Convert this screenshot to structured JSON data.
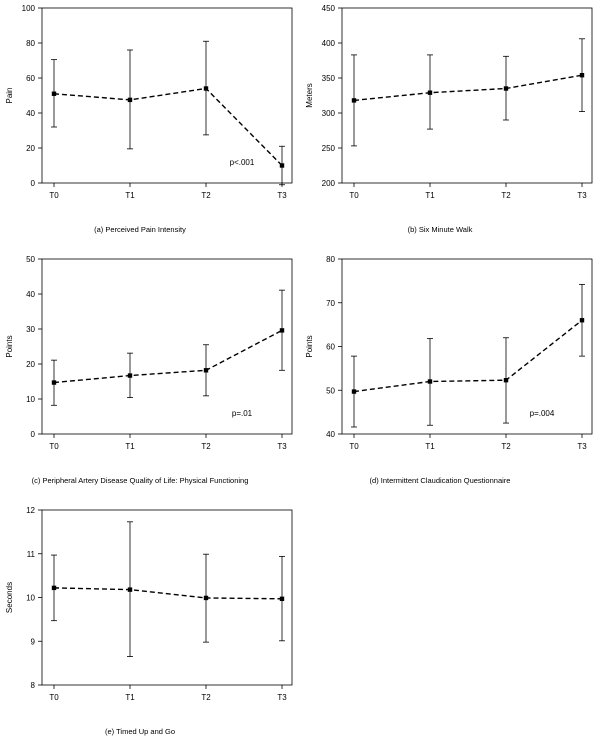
{
  "chart_data": [
    {
      "type": "line",
      "caption": "(a) Perceived Pain Intensity",
      "ylabel": "Pain",
      "categories": [
        "T0",
        "T1",
        "T2",
        "T3"
      ],
      "ylim": [
        0,
        100
      ],
      "yticks": [
        0,
        20,
        40,
        60,
        80,
        100
      ],
      "values": [
        51,
        47.5,
        54,
        10
      ],
      "err_low": [
        32,
        19.5,
        27.5,
        -1
      ],
      "err_high": [
        70.5,
        76,
        81,
        21
      ],
      "annotation": "p<.001",
      "grid": false
    },
    {
      "type": "line",
      "caption": "(b) Six Minute Walk",
      "ylabel": "Meters",
      "categories": [
        "T0",
        "T1",
        "T2",
        "T3"
      ],
      "ylim": [
        200,
        450
      ],
      "yticks": [
        200,
        250,
        300,
        350,
        400,
        450
      ],
      "values": [
        318,
        329,
        335,
        354
      ],
      "err_low": [
        253,
        277,
        290,
        302
      ],
      "err_high": [
        383,
        383,
        381,
        406
      ],
      "annotation": "",
      "grid": false
    },
    {
      "type": "line",
      "caption": "(c) Peripheral Artery Disease Quality of Life: Physical Functioning",
      "ylabel": "Points",
      "categories": [
        "T0",
        "T1",
        "T2",
        "T3"
      ],
      "ylim": [
        0,
        50
      ],
      "yticks": [
        0,
        10,
        20,
        30,
        40,
        50
      ],
      "values": [
        14.7,
        16.7,
        18.2,
        29.6
      ],
      "err_low": [
        8.2,
        10.4,
        10.9,
        18.2
      ],
      "err_high": [
        21.1,
        23.1,
        25.5,
        41.1
      ],
      "annotation": "p=.01",
      "grid": false
    },
    {
      "type": "line",
      "caption": "(d) Intermittent Claudication Questionnaire",
      "ylabel": "Points",
      "categories": [
        "T0",
        "T1",
        "T2",
        "T3"
      ],
      "ylim": [
        40,
        80
      ],
      "yticks": [
        40,
        50,
        60,
        70,
        80
      ],
      "values": [
        49.7,
        52,
        52.3,
        66
      ],
      "err_low": [
        41.6,
        42,
        42.5,
        57.8
      ],
      "err_high": [
        57.8,
        61.8,
        62,
        74.2
      ],
      "annotation": "p=.004",
      "grid": false
    },
    {
      "type": "line",
      "caption": "(e) Timed Up and Go",
      "ylabel": "Seconds",
      "categories": [
        "T0",
        "T1",
        "T2",
        "T3"
      ],
      "ylim": [
        8,
        12
      ],
      "yticks": [
        8,
        9,
        10,
        11,
        12
      ],
      "values": [
        10.22,
        10.18,
        9.99,
        9.97
      ],
      "err_low": [
        9.47,
        8.65,
        8.98,
        9.01
      ],
      "err_high": [
        10.97,
        11.73,
        10.99,
        10.94
      ],
      "annotation": "",
      "grid": false
    }
  ]
}
